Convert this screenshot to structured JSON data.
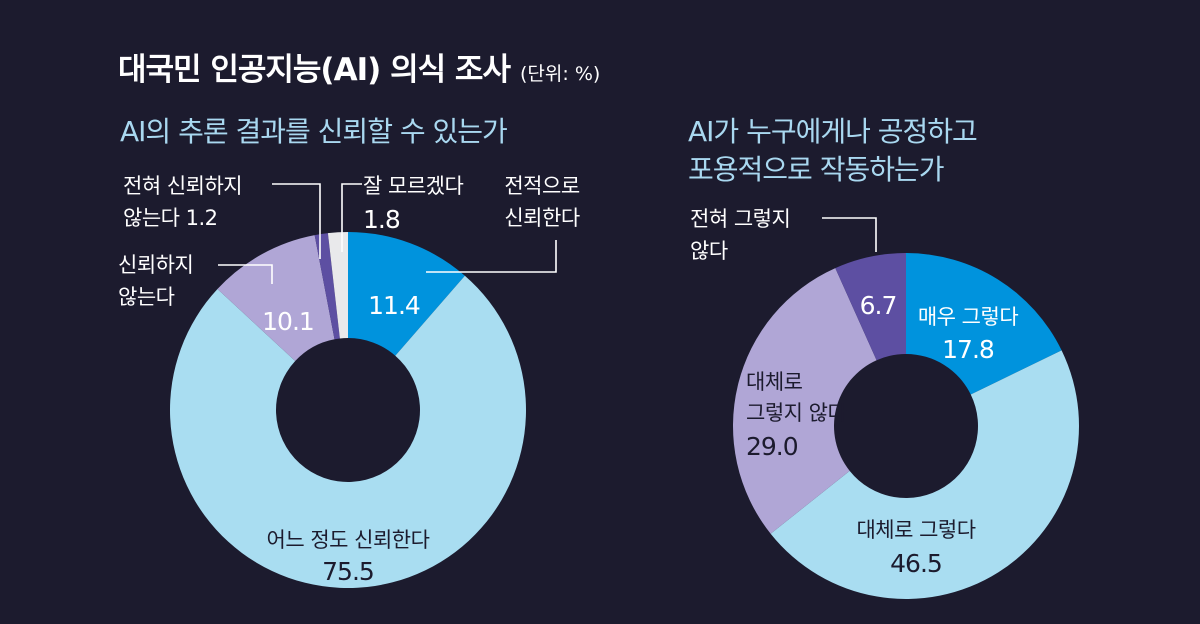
{
  "header": {
    "title": "대국민 인공지능(AI) 의식 조사",
    "unit": "(단위: %)"
  },
  "colors": {
    "background": "#1c1b2e",
    "strong_positive": "#0093dd",
    "positive": "#a9ddf1",
    "negative": "#b0a6d6",
    "strong_negative": "#5d4fa2",
    "unknown": "#e9e9eb"
  },
  "chart_data": [
    {
      "type": "pie",
      "donut": true,
      "title": "AI의 추론 결과를 신뢰할 수 있는가",
      "slices": [
        {
          "label": "전적으로 신뢰한다",
          "value": 11.4,
          "color": "#0093dd",
          "value_label": "11.4"
        },
        {
          "label": "어느 정도 신뢰한다",
          "value": 75.5,
          "color": "#a9ddf1",
          "value_label": "75.5"
        },
        {
          "label": "신뢰하지 않는다",
          "value": 10.1,
          "color": "#b0a6d6",
          "value_label": "10.1"
        },
        {
          "label": "전혀 신뢰하지 않는다",
          "value": 1.2,
          "color": "#5d4fa2",
          "value_label": "1.2"
        },
        {
          "label": "잘 모르겠다",
          "value": 1.8,
          "color": "#e9e9eb",
          "value_label": "1.8"
        }
      ]
    },
    {
      "type": "pie",
      "donut": true,
      "title": "AI가 누구에게나 공정하고 포용적으로 작동하는가",
      "slices": [
        {
          "label": "매우 그렇다",
          "value": 17.8,
          "color": "#0093dd",
          "value_label": "17.8"
        },
        {
          "label": "대체로 그렇다",
          "value": 46.5,
          "color": "#a9ddf1",
          "value_label": "46.5"
        },
        {
          "label": "대체로 그렇지 않다",
          "value": 29.0,
          "color": "#b0a6d6",
          "value_label": "29.0"
        },
        {
          "label": "전혀 그렇지 않다",
          "value": 6.7,
          "color": "#5d4fa2",
          "value_label": "6.7"
        }
      ]
    }
  ],
  "labels": {
    "chart1": {
      "title": "AI의 추론 결과를 신뢰할 수 있는가",
      "strongly_trust": [
        "전적으로",
        "신뢰한다"
      ],
      "trust_somewhat": "어느 정도 신뢰한다",
      "distrust": [
        "신뢰하지",
        "않는다"
      ],
      "strongly_distrust": [
        "전혀 신뢰하지",
        "않는다 1.2"
      ],
      "dont_know": [
        "잘 모르겠다",
        "1.8"
      ],
      "v_strongly_trust": "11.4",
      "v_trust_somewhat": "75.5",
      "v_distrust": "10.1"
    },
    "chart2": {
      "title_line1": "AI가 누구에게나 공정하고",
      "title_line2": "포용적으로 작동하는가",
      "very_yes": "매우 그렇다",
      "mostly_yes": "대체로 그렇다",
      "mostly_no": [
        "대체로",
        "그렇지 않다"
      ],
      "not_at_all": [
        "전혀 그렇지",
        "않다"
      ],
      "v_very_yes": "17.8",
      "v_mostly_yes": "46.5",
      "v_mostly_no": "29.0",
      "v_not_at_all": "6.7"
    }
  }
}
